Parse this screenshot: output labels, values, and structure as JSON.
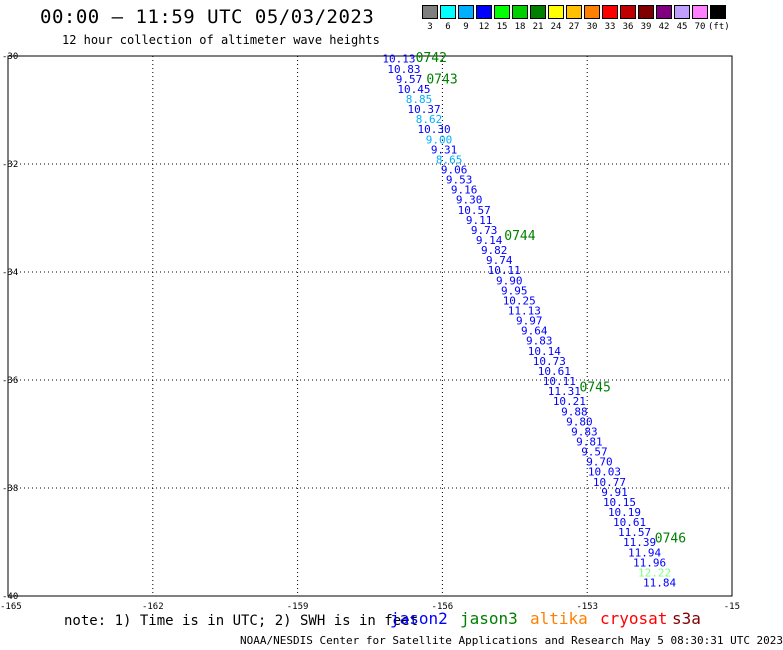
{
  "header": {
    "title": "00:00 – 11:59 UTC 05/03/2023",
    "subtitle": "12 hour collection of altimeter wave heights"
  },
  "scale": {
    "colors": [
      "#7f7f7f",
      "#00ffff",
      "#00b0ff",
      "#0000ff",
      "#00ff00",
      "#00d000",
      "#008000",
      "#ffff00",
      "#ffc000",
      "#ff8000",
      "#ff0000",
      "#c00000",
      "#800000",
      "#800080",
      "#c0a0ff",
      "#ff80ff",
      "#000000"
    ],
    "labels": [
      "3",
      "6",
      "9",
      "12",
      "15",
      "18",
      "21",
      "24",
      "27",
      "30",
      "33",
      "36",
      "39",
      "42",
      "45",
      "70",
      "(ft)"
    ]
  },
  "axes": {
    "y_ticks": [
      "-30",
      "-32",
      "-34",
      "-36",
      "-38",
      "-40"
    ],
    "x_ticks": [
      "-165",
      "-162",
      "-159",
      "-156",
      "-153",
      "-15"
    ]
  },
  "chart_data": {
    "type": "scatter",
    "x_range": [
      -165,
      -150
    ],
    "y_range": [
      -40,
      -30
    ],
    "wave_heights": [
      {
        "v": "10.13",
        "c": "#0000ff"
      },
      {
        "v": "10.83",
        "c": "#0000ff"
      },
      {
        "v": "9.57",
        "c": "#0000ff"
      },
      {
        "v": "10.45",
        "c": "#0000ff"
      },
      {
        "v": "8.85",
        "c": "#00b0ff"
      },
      {
        "v": "10.37",
        "c": "#0000ff"
      },
      {
        "v": "8.62",
        "c": "#00b0ff"
      },
      {
        "v": "10.30",
        "c": "#0000ff"
      },
      {
        "v": "9.00",
        "c": "#00b0ff"
      },
      {
        "v": "9.31",
        "c": "#0000ff"
      },
      {
        "v": "8.65",
        "c": "#00b0ff"
      },
      {
        "v": "9.06",
        "c": "#0000ff"
      },
      {
        "v": "9.53",
        "c": "#0000ff"
      },
      {
        "v": "9.16",
        "c": "#0000ff"
      },
      {
        "v": "9.30",
        "c": "#0000ff"
      },
      {
        "v": "10.57",
        "c": "#0000ff"
      },
      {
        "v": "9.11",
        "c": "#0000ff"
      },
      {
        "v": "9.73",
        "c": "#0000ff"
      },
      {
        "v": "9.14",
        "c": "#0000ff"
      },
      {
        "v": "9.82",
        "c": "#0000ff"
      },
      {
        "v": "9.74",
        "c": "#0000ff"
      },
      {
        "v": "10.11",
        "c": "#0000ff"
      },
      {
        "v": "9.90",
        "c": "#0000ff"
      },
      {
        "v": "9.95",
        "c": "#0000ff"
      },
      {
        "v": "10.25",
        "c": "#0000ff"
      },
      {
        "v": "11.13",
        "c": "#0000ff"
      },
      {
        "v": "9.97",
        "c": "#0000ff"
      },
      {
        "v": "9.64",
        "c": "#0000ff"
      },
      {
        "v": "9.83",
        "c": "#0000ff"
      },
      {
        "v": "10.14",
        "c": "#0000ff"
      },
      {
        "v": "10.73",
        "c": "#0000ff"
      },
      {
        "v": "10.61",
        "c": "#0000ff"
      },
      {
        "v": "10.11",
        "c": "#0000ff"
      },
      {
        "v": "11.31",
        "c": "#0000ff"
      },
      {
        "v": "10.21",
        "c": "#0000ff"
      },
      {
        "v": "9.88",
        "c": "#0000ff"
      },
      {
        "v": "9.80",
        "c": "#0000ff"
      },
      {
        "v": "9.83",
        "c": "#0000ff"
      },
      {
        "v": "9.81",
        "c": "#0000ff"
      },
      {
        "v": "9.57",
        "c": "#0000ff"
      },
      {
        "v": "9.70",
        "c": "#0000ff"
      },
      {
        "v": "10.03",
        "c": "#0000ff"
      },
      {
        "v": "10.77",
        "c": "#0000ff"
      },
      {
        "v": "9.91",
        "c": "#0000ff"
      },
      {
        "v": "10.15",
        "c": "#0000ff"
      },
      {
        "v": "10.19",
        "c": "#0000ff"
      },
      {
        "v": "10.61",
        "c": "#0000ff"
      },
      {
        "v": "11.57",
        "c": "#0000ff"
      },
      {
        "v": "11.39",
        "c": "#0000ff"
      },
      {
        "v": "11.94",
        "c": "#0000ff"
      },
      {
        "v": "11.96",
        "c": "#0000ff"
      },
      {
        "v": "12.22",
        "c": "#80ff80"
      },
      {
        "v": "11.84",
        "c": "#0000ff"
      }
    ],
    "time_labels": [
      {
        "t": "0742",
        "lat": -30.0
      },
      {
        "t": "0743",
        "lat": -30.4
      },
      {
        "t": "0744",
        "lat": -33.3
      },
      {
        "t": "0745",
        "lat": -36.1
      },
      {
        "t": "0746",
        "lat": -38.9
      }
    ]
  },
  "note": "note: 1) Time is in UTC; 2) SWH is in feet",
  "satellites": [
    {
      "name": "jason2",
      "color": "#0000ff"
    },
    {
      "name": "jason3",
      "color": "#008000"
    },
    {
      "name": "altika",
      "color": "#ff8000"
    },
    {
      "name": "cryosat",
      "color": "#ff0000"
    },
    {
      "name": "s3a",
      "color": "#800000"
    }
  ],
  "footer": "NOAA/NESDIS Center for Satellite Applications and Research   May  5 08:30:31 UTC 2023"
}
